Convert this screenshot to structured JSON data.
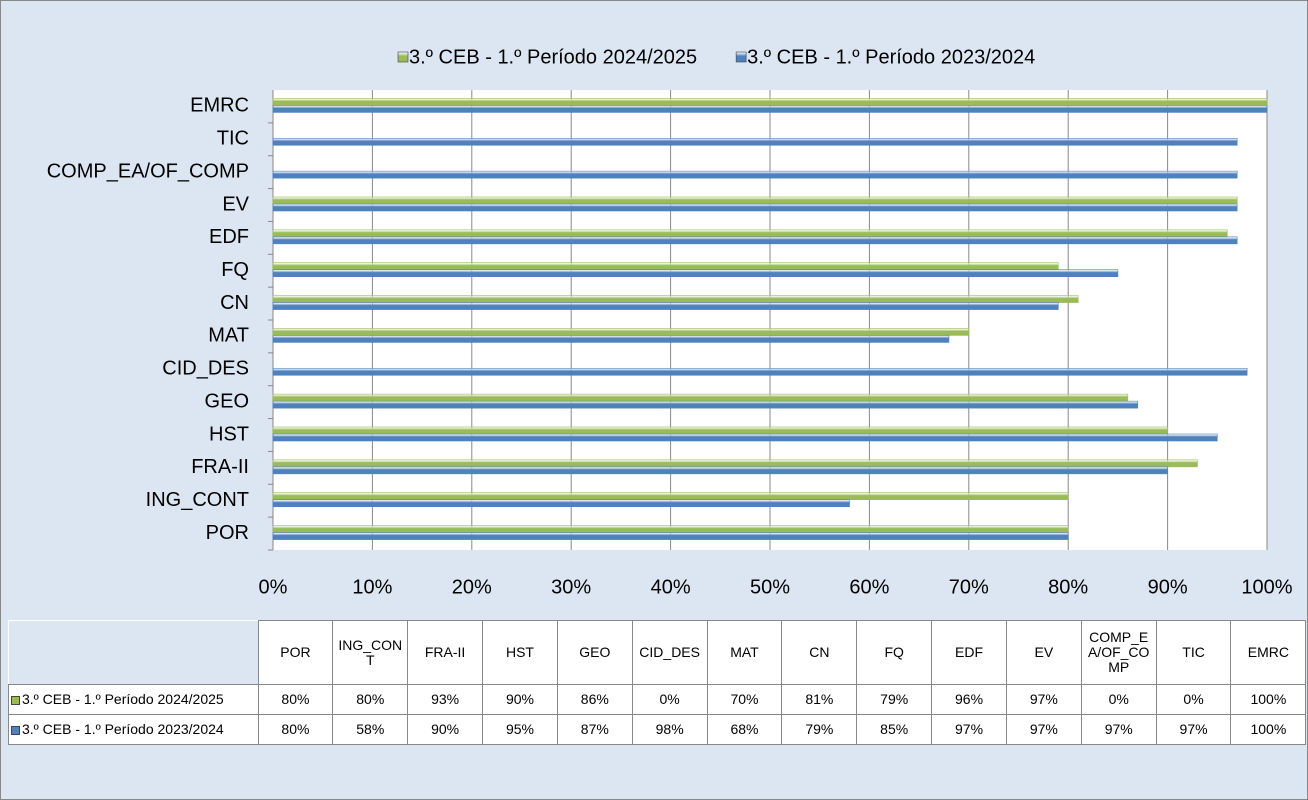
{
  "chart_data": {
    "type": "bar",
    "orientation": "horizontal",
    "categories": [
      "POR",
      "ING_CONT",
      "FRA-II",
      "HST",
      "GEO",
      "CID_DES",
      "MAT",
      "CN",
      "FQ",
      "EDF",
      "EV",
      "COMP_EA/OF_COMP",
      "TIC",
      "EMRC"
    ],
    "series": [
      {
        "name": "3.º CEB - 1.º Período 2024/2025",
        "color": "#9bbb59",
        "values": [
          80,
          80,
          93,
          90,
          86,
          0,
          70,
          81,
          79,
          96,
          97,
          0,
          0,
          100
        ],
        "value_labels": [
          "80%",
          "80%",
          "93%",
          "90%",
          "86%",
          "0%",
          "70%",
          "81%",
          "79%",
          "96%",
          "97%",
          "0%",
          "0%",
          "100%"
        ]
      },
      {
        "name": "3.º CEB - 1.º Período 2023/2024",
        "color": "#4f81bd",
        "values": [
          80,
          58,
          90,
          95,
          87,
          98,
          68,
          79,
          85,
          97,
          97,
          97,
          97,
          100
        ],
        "value_labels": [
          "80%",
          "58%",
          "90%",
          "95%",
          "87%",
          "98%",
          "68%",
          "79%",
          "85%",
          "97%",
          "97%",
          "97%",
          "97%",
          "100%"
        ]
      }
    ],
    "xlim": [
      0,
      100
    ],
    "xticks": [
      {
        "value": 0,
        "label": "0%"
      },
      {
        "value": 10,
        "label": "10%"
      },
      {
        "value": 20,
        "label": "20%"
      },
      {
        "value": 30,
        "label": "30%"
      },
      {
        "value": 40,
        "label": "40%"
      },
      {
        "value": 50,
        "label": "50%"
      },
      {
        "value": 60,
        "label": "60%"
      },
      {
        "value": 70,
        "label": "70%"
      },
      {
        "value": 80,
        "label": "80%"
      },
      {
        "value": 90,
        "label": "90%"
      },
      {
        "value": 100,
        "label": "100%"
      }
    ],
    "grid": true,
    "legend": "top"
  }
}
